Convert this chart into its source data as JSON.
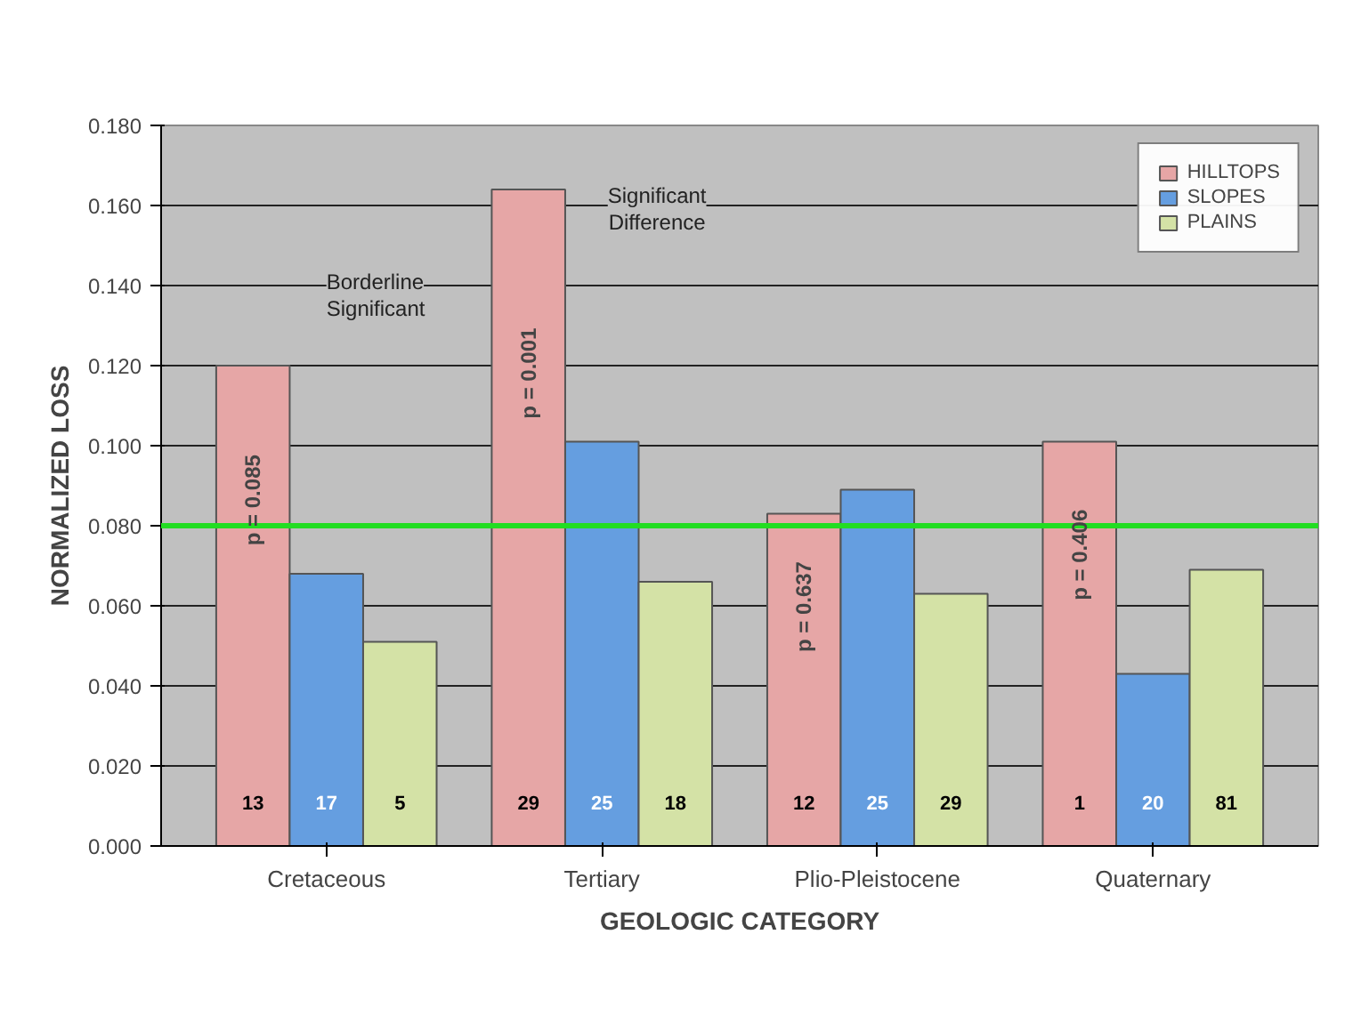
{
  "chart_data": {
    "type": "bar",
    "xlabel": "GEOLOGIC CATEGORY",
    "ylabel": "NORMALIZED LOSS",
    "categories": [
      "Cretaceous",
      "Tertiary",
      "Plio-Pleistocene",
      "Quaternary"
    ],
    "series": [
      {
        "name": "HILLTOPS",
        "color": "#e6a6a6",
        "values": [
          0.12,
          0.164,
          0.083,
          0.101
        ]
      },
      {
        "name": "SLOPES",
        "color": "#659ee0",
        "values": [
          0.068,
          0.101,
          0.089,
          0.043
        ]
      },
      {
        "name": "PLAINS",
        "color": "#d4e2a6",
        "values": [
          0.051,
          0.066,
          0.063,
          0.069
        ]
      }
    ],
    "ylim": [
      0,
      0.18
    ],
    "yticks": [
      {
        "value": 0,
        "label": "0.000"
      },
      {
        "value": 0.02,
        "label": "0.020"
      },
      {
        "value": 0.04,
        "label": "0.040"
      },
      {
        "value": 0.06,
        "label": "0.060"
      },
      {
        "value": 0.08,
        "label": "0.080"
      },
      {
        "value": 0.1,
        "label": "0.100"
      },
      {
        "value": 0.12,
        "label": "0.120"
      },
      {
        "value": 0.14,
        "label": "0.140"
      },
      {
        "value": 0.16,
        "label": "0.160"
      },
      {
        "value": 0.18,
        "label": "0.180"
      }
    ],
    "ref_lines": [
      {
        "axis": "y",
        "value": 0.08,
        "color": "#22dd22"
      }
    ],
    "annotations": [
      "p = 0.085",
      "p = 0.001",
      "p = 0.637",
      "p = 0.406",
      "Borderline Significant",
      "Significant Difference",
      "13",
      "29",
      "12",
      "1",
      "17",
      "25",
      "25",
      "20",
      "5",
      "18",
      "29",
      "81"
    ],
    "grid": "y",
    "legend": "top right"
  }
}
